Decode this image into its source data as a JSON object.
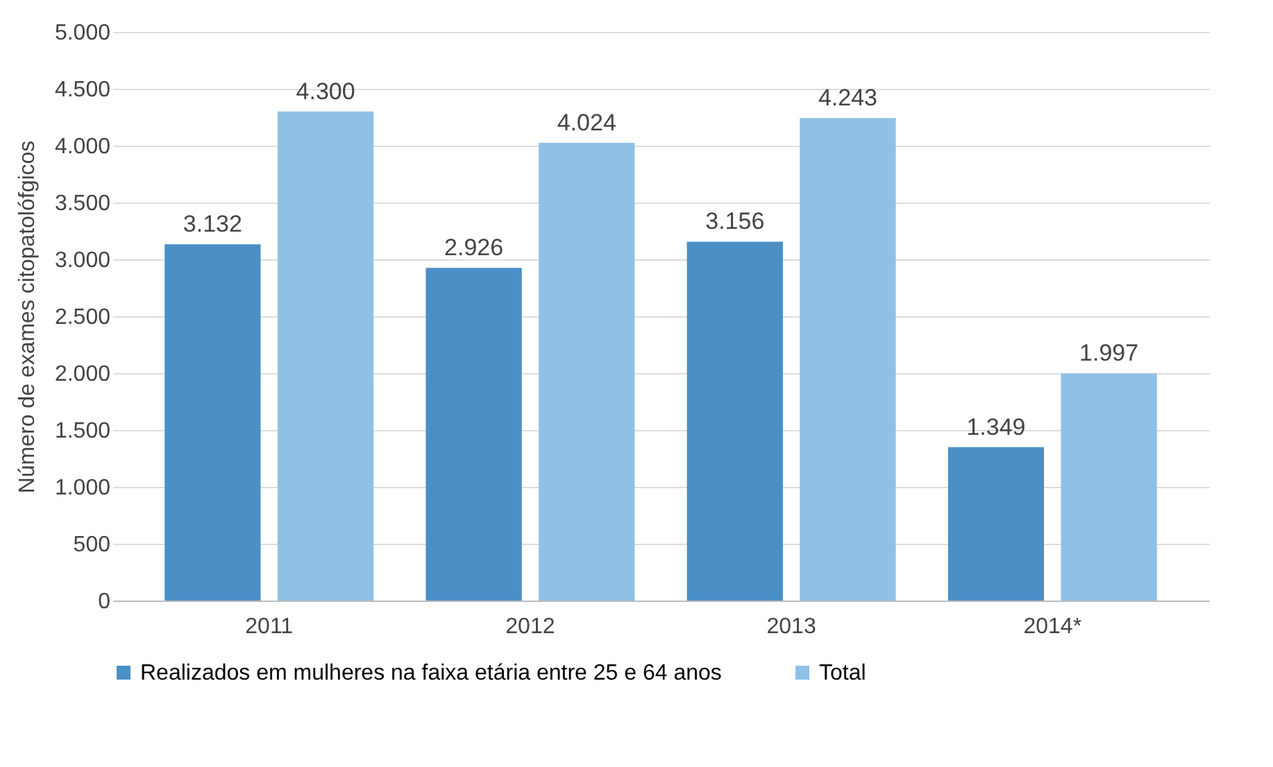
{
  "chart_data": {
    "type": "bar",
    "ylabel": "Número de exames citopatolófgicos",
    "categories": [
      "2011",
      "2012",
      "2013",
      "2014*"
    ],
    "series": [
      {
        "name": "Realizados em mulheres na faixa etária entre 25 e 64 anos",
        "color": "#4a8fc6",
        "values": [
          3132,
          2926,
          3156,
          1349
        ],
        "value_labels": [
          "3.132",
          "2.926",
          "3.156",
          "1.349"
        ]
      },
      {
        "name": "Total",
        "color": "#8fc0e6",
        "values": [
          4300,
          4024,
          4243,
          1997
        ],
        "value_labels": [
          "4.300",
          "4.024",
          "4.243",
          "1.997"
        ]
      }
    ],
    "ylim": [
      0,
      5000
    ],
    "yticks": [
      {
        "value": 0,
        "label": "0"
      },
      {
        "value": 500,
        "label": "500"
      },
      {
        "value": 1000,
        "label": "1.000"
      },
      {
        "value": 1500,
        "label": "1.500"
      },
      {
        "value": 2000,
        "label": "2.000"
      },
      {
        "value": 2500,
        "label": "2.500"
      },
      {
        "value": 3000,
        "label": "3.000"
      },
      {
        "value": 3500,
        "label": "3.500"
      },
      {
        "value": 4000,
        "label": "4.000"
      },
      {
        "value": 4500,
        "label": "4.500"
      },
      {
        "value": 5000,
        "label": "5.000"
      }
    ],
    "grid": "y",
    "legend": "bottom"
  }
}
